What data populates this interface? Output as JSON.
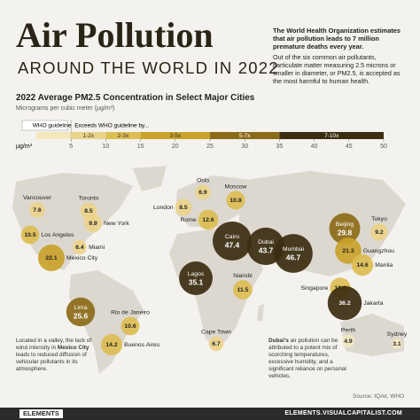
{
  "header": {
    "title": "Air Pollution",
    "subtitle": "AROUND THE WORLD IN 2022",
    "intro_bold": "The World Health Organization estimates that air pollution leads to 7 million premature deaths every year.",
    "intro": "Out of the six common air pollutants, particulate matter measuring 2.5 microns or smaller in diameter, or PM2.5, is accepted as the most harmful to human health."
  },
  "chart_heading": "2022 Average PM2.5 Concentration in Select Major Cities",
  "chart_subheading": "Micrograms per cubic meter (µg/m³)",
  "legend": {
    "unit": "µg/m³",
    "who": {
      "label": "WHO guideline",
      "range": [
        0,
        5
      ],
      "color": "#f3e8bd"
    },
    "exceeds_label": "Exceeds WHO guideline by...",
    "bins": [
      {
        "label": "1-2x",
        "range": [
          5,
          10
        ],
        "color": "#ead48a"
      },
      {
        "label": "2-3x",
        "range": [
          10,
          15
        ],
        "color": "#dcbd52"
      },
      {
        "label": "3-5x",
        "range": [
          15,
          25
        ],
        "color": "#c9a22a"
      },
      {
        "label": "5-7x",
        "range": [
          25,
          35
        ],
        "color": "#8c6b18"
      },
      {
        "label": "7-10x",
        "range": [
          35,
          50
        ],
        "color": "#3b2d10"
      }
    ],
    "ticks": [
      5,
      10,
      15,
      20,
      25,
      30,
      35,
      40,
      45,
      50
    ]
  },
  "cities": [
    {
      "name": "Vancouver",
      "value": 7.6
    },
    {
      "name": "Toronto",
      "value": 8.5
    },
    {
      "name": "New York",
      "value": 9.9
    },
    {
      "name": "Los Angeles",
      "value": 10.5
    },
    {
      "name": "Miami",
      "value": 6.4
    },
    {
      "name": "Mexico City",
      "value": 22.1
    },
    {
      "name": "Lima",
      "value": 25.6
    },
    {
      "name": "Rio de Janeiro",
      "value": 10.6
    },
    {
      "name": "Buenos Aires",
      "value": 14.2
    },
    {
      "name": "Oslo",
      "value": 6.9
    },
    {
      "name": "Moscow",
      "value": 10.8
    },
    {
      "name": "London",
      "value": 8.5
    },
    {
      "name": "Rome",
      "value": 12.6
    },
    {
      "name": "Cairo",
      "value": 47.4
    },
    {
      "name": "Dubai",
      "value": 43.7
    },
    {
      "name": "Mumbai",
      "value": 46.7
    },
    {
      "name": "Lagos",
      "value": 35.1
    },
    {
      "name": "Nairobi",
      "value": 11.5
    },
    {
      "name": "Cape Town",
      "value": 6.7
    },
    {
      "name": "Beijing",
      "value": 29.8
    },
    {
      "name": "Tokyo",
      "value": 9.2
    },
    {
      "name": "Guangzhou",
      "value": 21.3
    },
    {
      "name": "Manila",
      "value": 14.6
    },
    {
      "name": "Singapore",
      "value": 13.3
    },
    {
      "name": "Jakarta",
      "value": 36.2
    },
    {
      "name": "Perth",
      "value": 4.9
    },
    {
      "name": "Sydney",
      "value": 3.1
    }
  ],
  "annotations": [
    {
      "before": "Located in a valley, the lack of wind intensity in",
      "bold": "Mexico City",
      "after": "leads to reduced diffusion of vehicular pollutants in its atmosphere."
    },
    {
      "bold": "Dubai's",
      "after": "air pollution can be attributed to a potent mix of scorching temperatures, excessive humidity, and a significant reliance on personal vehicles."
    }
  ],
  "source": "Source: IQAir, WHO",
  "footer": {
    "brand": "ELEMENTS",
    "url": "ELEMENTS.VISUALCAPITALIST.COM"
  }
}
